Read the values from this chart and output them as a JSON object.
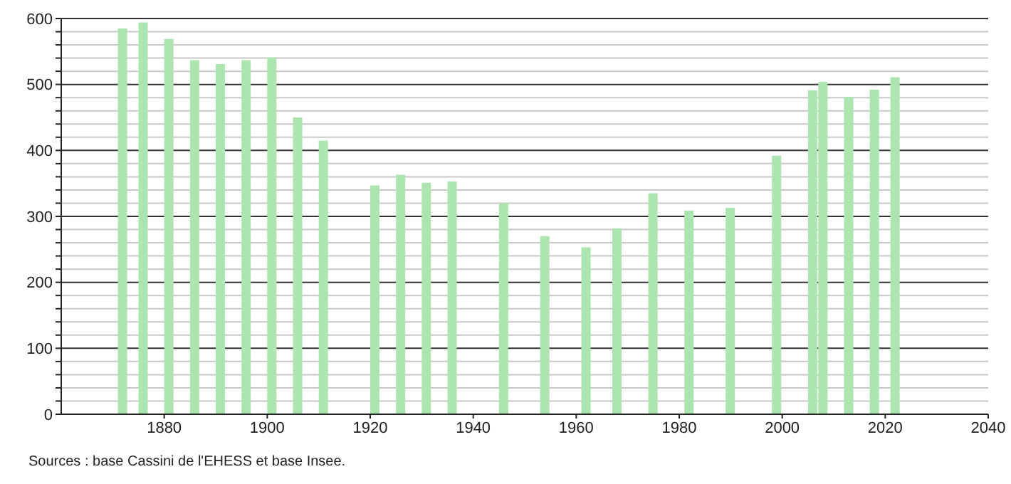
{
  "chart_data": {
    "type": "bar",
    "x": [
      1872,
      1876,
      1881,
      1886,
      1891,
      1896,
      1901,
      1906,
      1911,
      1921,
      1926,
      1931,
      1936,
      1946,
      1954,
      1962,
      1968,
      1975,
      1982,
      1990,
      1999,
      2006,
      2008,
      2013,
      2018,
      2022
    ],
    "values": [
      585,
      594,
      569,
      537,
      531,
      537,
      541,
      450,
      415,
      347,
      363,
      351,
      353,
      320,
      270,
      253,
      282,
      335,
      309,
      313,
      392,
      491,
      504,
      481,
      492,
      511
    ],
    "color": "#ade5b0",
    "xlim": [
      1860,
      2040
    ],
    "xticks": [
      1880,
      1900,
      1920,
      1940,
      1960,
      1980,
      2000,
      2020,
      2040
    ],
    "ylim": [
      0,
      600
    ],
    "yticks": [
      0,
      {
        "value": 20,
        "label": null
      },
      {
        "value": 40,
        "label": null
      },
      {
        "value": 60,
        "label": null
      },
      {
        "value": 80,
        "label": null
      },
      100,
      {
        "value": 120,
        "label": null
      },
      {
        "value": 140,
        "label": null
      },
      {
        "value": 160,
        "label": null
      },
      {
        "value": 180,
        "label": null
      },
      200,
      {
        "value": 220,
        "label": null
      },
      {
        "value": 240,
        "label": null
      },
      {
        "value": 260,
        "label": null
      },
      {
        "value": 280,
        "label": null
      },
      300,
      {
        "value": 320,
        "label": null
      },
      {
        "value": 340,
        "label": null
      },
      {
        "value": 360,
        "label": null
      },
      {
        "value": 380,
        "label": null
      },
      400,
      {
        "value": 420,
        "label": null
      },
      {
        "value": 440,
        "label": null
      },
      {
        "value": 460,
        "label": null
      },
      {
        "value": 480,
        "label": null
      },
      500,
      {
        "value": 520,
        "label": null
      },
      {
        "value": 540,
        "label": null
      },
      {
        "value": 560,
        "label": null
      },
      {
        "value": 580,
        "label": null
      },
      600
    ],
    "grid": "y",
    "annotations": [
      "Sources : base Cassini de l'EHESS et base Insee."
    ]
  }
}
